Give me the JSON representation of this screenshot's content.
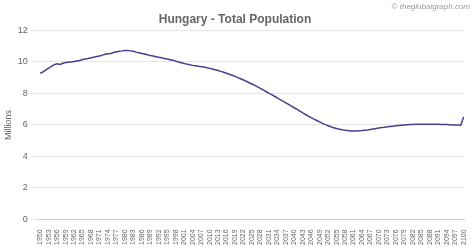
{
  "chart_data": {
    "type": "line",
    "title": "Hungary - Total Population",
    "y_label": "Millions",
    "annotations": [
      "© theglobalgraph.com"
    ],
    "color": "#4B3E8C",
    "grid": true,
    "x": [
      1950,
      1951,
      1952,
      1953,
      1954,
      1955,
      1956,
      1957,
      1958,
      1959,
      1960,
      1961,
      1962,
      1963,
      1964,
      1965,
      1966,
      1967,
      1968,
      1969,
      1970,
      1971,
      1972,
      1973,
      1974,
      1975,
      1976,
      1977,
      1978,
      1979,
      1980,
      1981,
      1982,
      1983,
      1984,
      1985,
      1986,
      1987,
      1988,
      1989,
      1990,
      1991,
      1992,
      1993,
      1994,
      1995,
      1996,
      1997,
      1998,
      1999,
      2000,
      2001,
      2002,
      2003,
      2004,
      2005,
      2006,
      2007,
      2008,
      2009,
      2010,
      2011,
      2012,
      2013,
      2014,
      2015,
      2016,
      2017,
      2018,
      2019,
      2020,
      2021,
      2022,
      2023,
      2024,
      2025,
      2026,
      2027,
      2028,
      2029,
      2030,
      2031,
      2032,
      2033,
      2034,
      2035,
      2036,
      2037,
      2038,
      2039,
      2040,
      2041,
      2042,
      2043,
      2044,
      2045,
      2046,
      2047,
      2048,
      2049,
      2050,
      2051,
      2052,
      2053,
      2054,
      2055,
      2056,
      2057,
      2058,
      2059,
      2060,
      2061,
      2062,
      2063,
      2064,
      2065,
      2066,
      2067,
      2068,
      2069,
      2070,
      2071,
      2072,
      2073,
      2074,
      2075,
      2076,
      2077,
      2078,
      2079,
      2080,
      2081,
      2082,
      2083,
      2084,
      2085,
      2086,
      2087,
      2088,
      2089,
      2090,
      2091,
      2092,
      2093,
      2094,
      2095,
      2096,
      2097,
      2098,
      2099,
      2100
    ],
    "values": [
      9.28,
      9.37,
      9.5,
      9.61,
      9.72,
      9.83,
      9.88,
      9.84,
      9.91,
      9.96,
      9.98,
      10.0,
      10.02,
      10.06,
      10.09,
      10.15,
      10.19,
      10.22,
      10.26,
      10.3,
      10.34,
      10.38,
      10.43,
      10.48,
      10.52,
      10.54,
      10.6,
      10.65,
      10.68,
      10.7,
      10.73,
      10.72,
      10.7,
      10.67,
      10.62,
      10.58,
      10.54,
      10.5,
      10.45,
      10.4,
      10.37,
      10.33,
      10.29,
      10.26,
      10.22,
      10.18,
      10.14,
      10.1,
      10.05,
      10.0,
      9.95,
      9.9,
      9.86,
      9.82,
      9.78,
      9.75,
      9.72,
      9.7,
      9.67,
      9.63,
      9.59,
      9.55,
      9.5,
      9.45,
      9.4,
      9.34,
      9.28,
      9.22,
      9.15,
      9.08,
      9.0,
      8.93,
      8.85,
      8.77,
      8.68,
      8.6,
      8.51,
      8.42,
      8.32,
      8.22,
      8.12,
      8.02,
      7.92,
      7.82,
      7.71,
      7.61,
      7.51,
      7.4,
      7.3,
      7.19,
      7.09,
      6.98,
      6.87,
      6.76,
      6.66,
      6.56,
      6.46,
      6.37,
      6.28,
      6.19,
      6.1,
      6.02,
      5.95,
      5.88,
      5.82,
      5.77,
      5.73,
      5.69,
      5.66,
      5.64,
      5.62,
      5.62,
      5.62,
      5.63,
      5.64,
      5.66,
      5.68,
      5.71,
      5.74,
      5.77,
      5.8,
      5.83,
      5.85,
      5.88,
      5.9,
      5.92,
      5.94,
      5.96,
      5.98,
      6.0,
      6.01,
      6.02,
      6.03,
      6.04,
      6.05,
      6.05,
      6.05,
      6.05,
      6.05,
      6.05,
      6.04,
      6.04,
      6.03,
      6.03,
      6.02,
      6.01,
      6.0,
      5.99,
      5.99,
      5.98,
      6.5
    ],
    "xlim": [
      1949.5,
      2100.5
    ],
    "xticks": [
      1950,
      1953,
      1956,
      1959,
      1962,
      1965,
      1968,
      1971,
      1974,
      1977,
      1980,
      1983,
      1986,
      1989,
      1992,
      1995,
      1998,
      2001,
      2004,
      2007,
      2010,
      2013,
      2016,
      2019,
      2022,
      2025,
      2028,
      2031,
      2034,
      2037,
      2040,
      2043,
      2046,
      2049,
      2052,
      2055,
      2058,
      2061,
      2064,
      2067,
      2070,
      2073,
      2076,
      2079,
      2082,
      2085,
      2088,
      2091,
      2094,
      2097,
      2100
    ],
    "ylim": [
      0,
      12
    ],
    "yticks": [
      0,
      2,
      4,
      6,
      8,
      10,
      12
    ]
  }
}
